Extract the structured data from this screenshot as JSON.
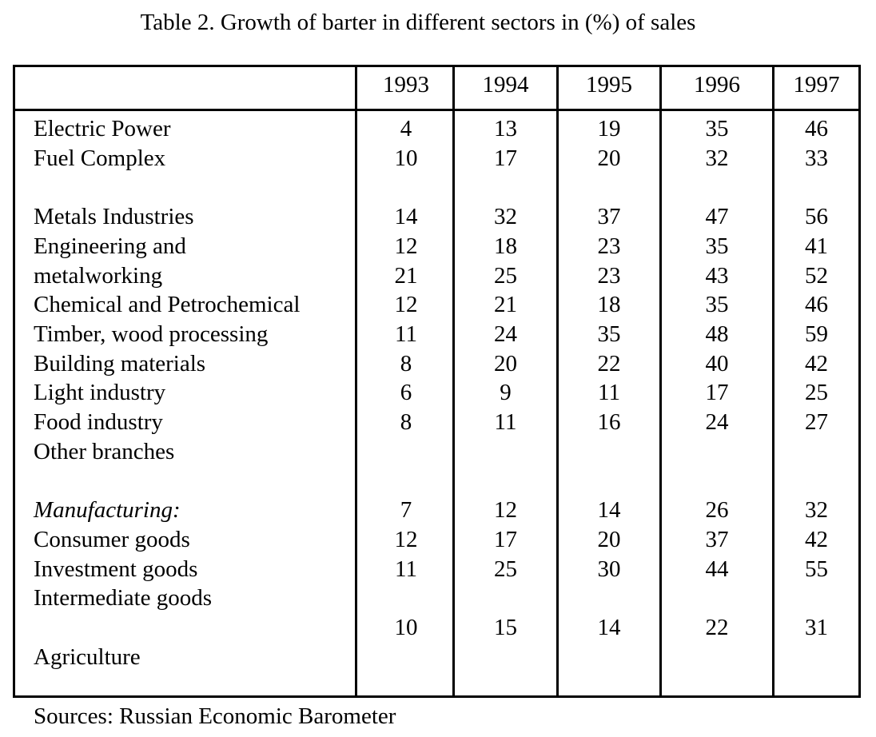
{
  "caption": "Table 2. Growth of barter in different sectors in (%) of sales",
  "years": [
    "1993",
    "1994",
    "1995",
    "1996",
    "1997"
  ],
  "rows": [
    {
      "label": "Electric Power",
      "values": [
        "4",
        "13",
        "19",
        "35",
        "46"
      ]
    },
    {
      "label": "Fuel Complex",
      "values": [
        "10",
        "17",
        "20",
        "32",
        "33"
      ]
    },
    {
      "label": "",
      "values": [
        "",
        "",
        "",
        "",
        ""
      ]
    },
    {
      "label": "Metals Industries",
      "values": [
        "14",
        "32",
        "37",
        "47",
        "56"
      ]
    },
    {
      "label": "Engineering and",
      "values": [
        "12",
        "18",
        "23",
        "35",
        "41"
      ]
    },
    {
      "label": "metalworking",
      "values": [
        "21",
        "25",
        "23",
        "43",
        "52"
      ]
    },
    {
      "label": "Chemical and Petrochemical",
      "values": [
        "12",
        "21",
        "18",
        "35",
        "46"
      ]
    },
    {
      "label": "Timber, wood processing",
      "values": [
        "11",
        "24",
        "35",
        "48",
        "59"
      ]
    },
    {
      "label": "Building materials",
      "values": [
        "8",
        "20",
        "22",
        "40",
        "42"
      ]
    },
    {
      "label": "Light industry",
      "values": [
        "6",
        "9",
        "11",
        "17",
        "25"
      ]
    },
    {
      "label": "Food industry",
      "values": [
        "8",
        "11",
        "16",
        "24",
        "27"
      ]
    },
    {
      "label": "Other branches",
      "values": [
        "",
        "",
        "",
        "",
        ""
      ]
    },
    {
      "label": "",
      "values": [
        "",
        "",
        "",
        "",
        ""
      ]
    },
    {
      "label": "Manufacturing:",
      "italic": true,
      "values": [
        "7",
        "12",
        "14",
        "26",
        "32"
      ]
    },
    {
      "label": "Consumer goods",
      "values": [
        "12",
        "17",
        "20",
        "37",
        "42"
      ]
    },
    {
      "label": "Investment goods",
      "values": [
        "11",
        "25",
        "30",
        "44",
        "55"
      ]
    },
    {
      "label": "Intermediate goods",
      "values": [
        "",
        "",
        "",
        "",
        ""
      ]
    },
    {
      "label": "",
      "values": [
        "10",
        "15",
        "14",
        "22",
        "31"
      ]
    },
    {
      "label": "Agriculture",
      "values": [
        "",
        "",
        "",
        "",
        ""
      ]
    }
  ],
  "source": "Sources: Russian Economic Barometer"
}
